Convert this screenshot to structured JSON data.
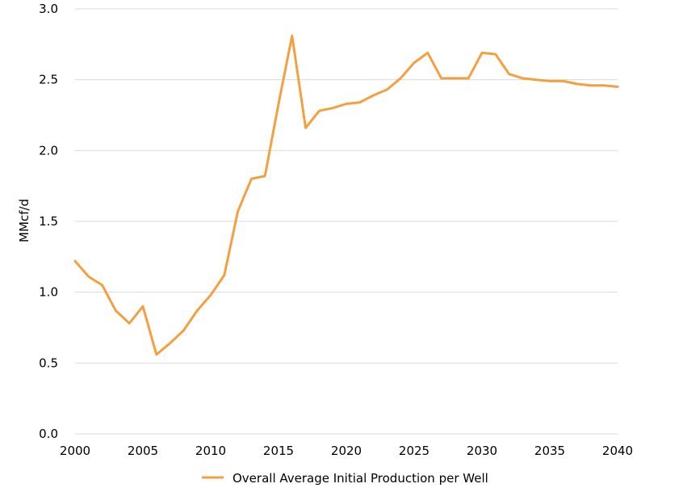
{
  "chart_data": {
    "type": "line",
    "title": "",
    "xlabel": "",
    "ylabel": "MMcf/d",
    "xlim": [
      2000,
      2040
    ],
    "ylim": [
      0,
      3.0
    ],
    "x_ticks": [
      "2000",
      "2005",
      "2010",
      "2015",
      "2020",
      "2025",
      "2030",
      "2035",
      "2040"
    ],
    "y_ticks": [
      "0.0",
      "0.5",
      "1.0",
      "1.5",
      "2.0",
      "2.5",
      "3.0"
    ],
    "grid": "horizontal",
    "legend_position": "bottom",
    "series": [
      {
        "name": "Overall Average Initial Production per Well",
        "color": "#F4A040",
        "x": [
          2000,
          2001,
          2002,
          2003,
          2004,
          2005,
          2006,
          2007,
          2008,
          2009,
          2010,
          2011,
          2012,
          2013,
          2014,
          2015,
          2016,
          2017,
          2018,
          2019,
          2020,
          2021,
          2022,
          2023,
          2024,
          2025,
          2026,
          2027,
          2028,
          2029,
          2030,
          2031,
          2032,
          2033,
          2034,
          2035,
          2036,
          2037,
          2038,
          2039,
          2040
        ],
        "values": [
          1.22,
          1.11,
          1.05,
          0.87,
          0.78,
          0.9,
          0.56,
          0.64,
          0.73,
          0.87,
          0.98,
          1.12,
          1.57,
          1.8,
          1.82,
          2.33,
          2.81,
          2.16,
          2.28,
          2.3,
          2.33,
          2.34,
          2.39,
          2.43,
          2.51,
          2.62,
          2.69,
          2.51,
          2.51,
          2.51,
          2.69,
          2.68,
          2.54,
          2.51,
          2.5,
          2.49,
          2.49,
          2.47,
          2.46,
          2.46,
          2.45
        ]
      }
    ]
  }
}
